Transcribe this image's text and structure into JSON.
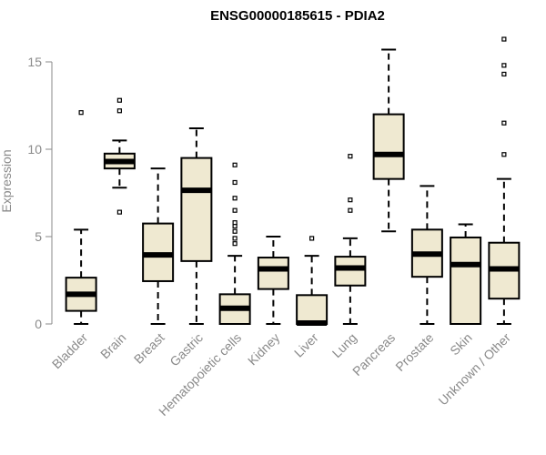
{
  "chart_data": {
    "type": "boxplot",
    "title": "ENSG00000185615 - PDIA2",
    "xlabel": "",
    "ylabel": "Expression",
    "ylim": [
      0,
      16.5
    ],
    "yticks": [
      0,
      5,
      10,
      15
    ],
    "grid": false,
    "legend": "none",
    "colors": {
      "box_fill": "#efe9d1",
      "stroke": "#000000",
      "axis": "#8a8a8a"
    },
    "categories": [
      "Bladder",
      "Brain",
      "Breast",
      "Gastric",
      "Hematopoietic cells",
      "Kidney",
      "Liver",
      "Lung",
      "Pancreas",
      "Prostate",
      "Skin",
      "Unknown / Other"
    ],
    "boxes": [
      {
        "category": "Bladder",
        "whisker_low": 0.0,
        "q1": 0.75,
        "median": 1.7,
        "q3": 2.65,
        "whisker_high": 5.4,
        "outliers": [
          12.1
        ]
      },
      {
        "category": "Brain",
        "whisker_low": 7.8,
        "q1": 8.9,
        "median": 9.3,
        "q3": 9.75,
        "whisker_high": 10.5,
        "outliers": [
          6.4,
          12.2,
          12.8
        ]
      },
      {
        "category": "Breast",
        "whisker_low": 0.0,
        "q1": 2.45,
        "median": 3.95,
        "q3": 5.75,
        "whisker_high": 8.9,
        "outliers": []
      },
      {
        "category": "Gastric",
        "whisker_low": 0.0,
        "q1": 3.6,
        "median": 7.65,
        "q3": 9.5,
        "whisker_high": 11.2,
        "outliers": []
      },
      {
        "category": "Hematopoietic cells",
        "whisker_low": 0.0,
        "q1": 0.0,
        "median": 0.9,
        "q3": 1.7,
        "whisker_high": 3.9,
        "outliers": [
          4.6,
          4.9,
          5.3,
          5.6,
          5.8,
          6.5,
          7.2,
          8.1,
          9.1
        ]
      },
      {
        "category": "Kidney",
        "whisker_low": 0.0,
        "q1": 2.0,
        "median": 3.15,
        "q3": 3.8,
        "whisker_high": 5.0,
        "outliers": []
      },
      {
        "category": "Liver",
        "whisker_low": 0.0,
        "q1": 0.0,
        "median": 0.05,
        "q3": 1.65,
        "whisker_high": 3.9,
        "outliers": [
          4.9
        ]
      },
      {
        "category": "Lung",
        "whisker_low": 0.0,
        "q1": 2.2,
        "median": 3.2,
        "q3": 3.85,
        "whisker_high": 4.9,
        "outliers": [
          6.5,
          7.1,
          9.6
        ]
      },
      {
        "category": "Pancreas",
        "whisker_low": 5.3,
        "q1": 8.3,
        "median": 9.7,
        "q3": 12.0,
        "whisker_high": 15.7,
        "outliers": []
      },
      {
        "category": "Prostate",
        "whisker_low": 0.0,
        "q1": 2.7,
        "median": 4.0,
        "q3": 5.4,
        "whisker_high": 7.9,
        "outliers": []
      },
      {
        "category": "Skin",
        "whisker_low": 0.0,
        "q1": 0.0,
        "median": 3.4,
        "q3": 4.95,
        "whisker_high": 5.7,
        "outliers": []
      },
      {
        "category": "Unknown / Other",
        "whisker_low": 0.0,
        "q1": 1.45,
        "median": 3.15,
        "q3": 4.65,
        "whisker_high": 8.3,
        "outliers": [
          9.7,
          11.5,
          14.3,
          14.8,
          16.3
        ]
      }
    ]
  }
}
